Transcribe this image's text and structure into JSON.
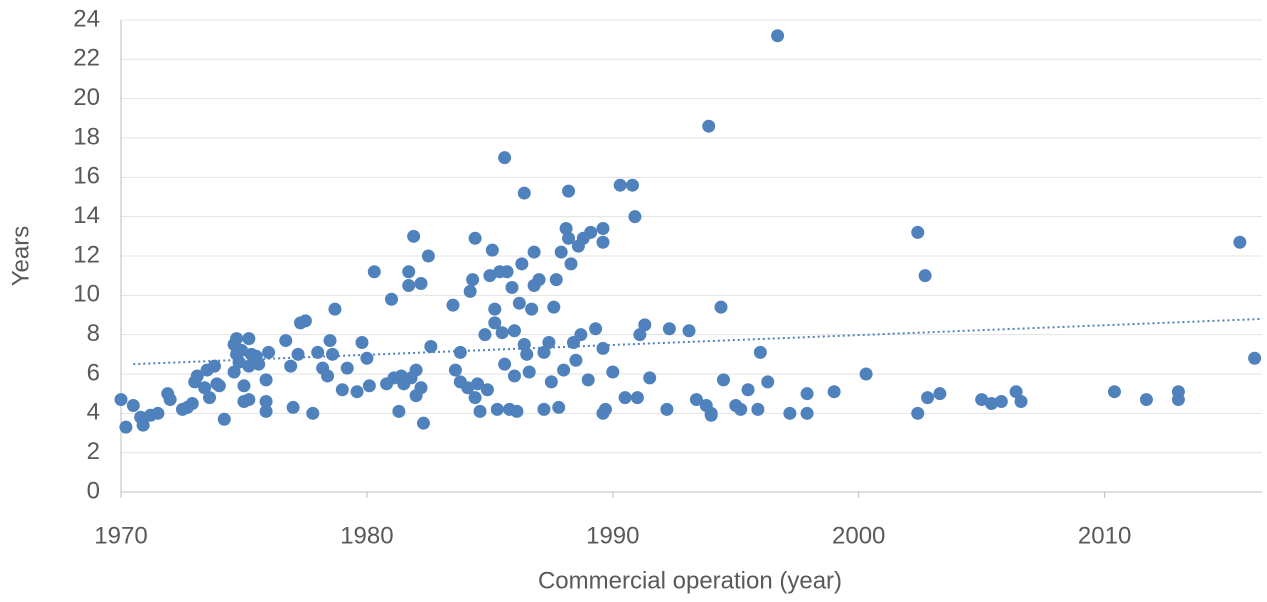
{
  "chart_data": {
    "type": "scatter",
    "x_label": "Commercial operation (year)",
    "y_label": "Years",
    "xlim": [
      1970,
      2016.4
    ],
    "xticks": [
      1970,
      1980,
      1990,
      2000,
      2010
    ],
    "ylim": [
      0,
      24
    ],
    "yticks": [
      0,
      2,
      4,
      6,
      8,
      10,
      12,
      14,
      16,
      18,
      20,
      22,
      24
    ],
    "grid": true,
    "trendline": {
      "x": [
        1970.5,
        2016.4
      ],
      "values": [
        6.5,
        8.8
      ],
      "style": "dotted"
    },
    "series": [
      {
        "color": "#4f81bd",
        "x": [
          1970,
          1970.2,
          1970.5,
          1970.8,
          1970.9,
          1971.2,
          1971.5,
          1971.9,
          1972,
          1972.5,
          1972.7,
          1972.9,
          1973,
          1973.1,
          1973.4,
          1973.5,
          1973.6,
          1973.8,
          1973.9,
          1974,
          1974.2,
          1974.6,
          1974.7,
          1974.6,
          1974.7,
          1974.8,
          1974.9,
          1975,
          1975,
          1975.2,
          1975.2,
          1975.2,
          1975.3,
          1975.5,
          1975.6,
          1975.9,
          1975.9,
          1975.9,
          1976,
          1976.7,
          1976.9,
          1977,
          1977.2,
          1977.3,
          1977.5,
          1977.8,
          1978,
          1978.2,
          1978.5,
          1978.6,
          1978.7,
          1978.4,
          1979,
          1979.2,
          1979.6,
          1979.8,
          1980,
          1980.1,
          1980.3,
          1980.8,
          1981,
          1981.1,
          1981.3,
          1981.4,
          1981.5,
          1981.7,
          1981.7,
          1981.8,
          1981.9,
          1982,
          1982,
          1982.2,
          1982.2,
          1982.3,
          1982.5,
          1982.6,
          1983.5,
          1983.6,
          1983.8,
          1983.8,
          1984.1,
          1984.2,
          1984.3,
          1984.4,
          1984.4,
          1984.5,
          1984.6,
          1984.8,
          1984.9,
          1985,
          1985.1,
          1985.2,
          1985.2,
          1985.3,
          1985.4,
          1985.5,
          1985.6,
          1985.6,
          1985.7,
          1985.8,
          1985.9,
          1986,
          1986,
          1986.1,
          1986.2,
          1986.3,
          1986.4,
          1986.4,
          1986.5,
          1986.6,
          1986.7,
          1986.8,
          1986.8,
          1987,
          1987.2,
          1987.2,
          1987.4,
          1987.5,
          1987.6,
          1987.7,
          1987.8,
          1987.9,
          1988,
          1988.1,
          1988.2,
          1988.2,
          1988.3,
          1988.4,
          1988.5,
          1988.6,
          1988.7,
          1988.8,
          1989,
          1989.1,
          1989.3,
          1989.6,
          1989.6,
          1989.6,
          1989.6,
          1989.7,
          1990,
          1990.3,
          1990.5,
          1990.8,
          1990.9,
          1991,
          1991.1,
          1991.3,
          1991.5,
          1992.2,
          1992.3,
          1993.1,
          1993.4,
          1993.8,
          1993.9,
          1994,
          1994,
          1994.4,
          1994.5,
          1995,
          1995.2,
          1995.5,
          1995.9,
          1996,
          1996.3,
          1996.7,
          1997.2,
          1997.9,
          1997.9,
          1999,
          2000.3,
          2002.4,
          2002.4,
          2002.7,
          2002.8,
          2003.3,
          2005,
          2005.4,
          2005.8,
          2006.4,
          2006.6,
          2010.4,
          2011.7,
          2013,
          2013,
          2015.5,
          2016.1
        ],
        "values": [
          4.7,
          3.3,
          4.4,
          3.8,
          3.4,
          3.9,
          4.0,
          5.0,
          4.7,
          4.2,
          4.3,
          4.5,
          5.6,
          5.9,
          5.3,
          6.2,
          4.8,
          6.4,
          5.5,
          5.4,
          3.7,
          7.5,
          7.8,
          6.1,
          7.0,
          6.6,
          7.2,
          5.4,
          4.6,
          7.8,
          4.7,
          6.4,
          7.0,
          6.9,
          6.5,
          5.7,
          4.6,
          4.1,
          7.1,
          7.7,
          6.4,
          4.3,
          7.0,
          8.6,
          8.7,
          4.0,
          7.1,
          6.3,
          7.7,
          7.0,
          9.3,
          5.9,
          5.2,
          6.3,
          5.1,
          7.6,
          6.8,
          5.4,
          11.2,
          5.5,
          9.8,
          5.8,
          4.1,
          5.9,
          5.5,
          11.2,
          10.5,
          5.8,
          13.0,
          4.9,
          6.2,
          10.6,
          5.3,
          3.5,
          12.0,
          7.4,
          9.5,
          6.2,
          7.1,
          5.6,
          5.3,
          10.2,
          10.8,
          12.9,
          4.8,
          5.5,
          4.1,
          8.0,
          5.2,
          11.0,
          12.3,
          9.3,
          8.6,
          4.2,
          11.2,
          8.1,
          17.0,
          6.5,
          11.2,
          4.2,
          10.4,
          8.2,
          5.9,
          4.1,
          9.6,
          11.6,
          15.2,
          7.5,
          7.0,
          6.1,
          9.3,
          12.2,
          10.5,
          10.8,
          7.1,
          4.2,
          7.6,
          5.6,
          9.4,
          10.8,
          4.3,
          12.2,
          6.2,
          13.4,
          12.9,
          15.3,
          11.6,
          7.6,
          6.7,
          12.5,
          8.0,
          12.9,
          5.7,
          13.2,
          8.3,
          4.0,
          13.4,
          12.7,
          7.3,
          4.2,
          6.1,
          15.6,
          4.8,
          15.6,
          14.0,
          4.8,
          8.0,
          8.5,
          5.8,
          4.2,
          8.3,
          8.2,
          4.7,
          4.4,
          18.6,
          4.0,
          3.9,
          9.4,
          5.7,
          4.4,
          4.2,
          5.2,
          4.2,
          7.1,
          5.6,
          23.2,
          4.0,
          4.0,
          5.0,
          5.1,
          6.0,
          4.0,
          13.2,
          11.0,
          4.8,
          5.0,
          4.7,
          4.5,
          4.6,
          5.1,
          4.6,
          5.1,
          4.7,
          5.1,
          4.7,
          12.7,
          6.8
        ]
      }
    ]
  }
}
